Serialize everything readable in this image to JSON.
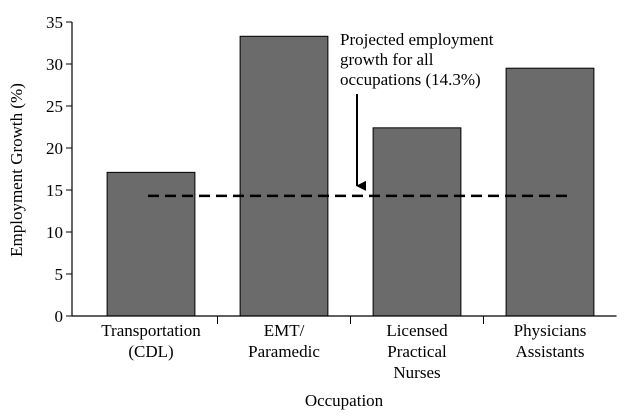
{
  "chart_data": {
    "type": "bar",
    "y_label": "Employment Growth (%)",
    "x_label": "Occupation",
    "categories": [
      [
        "Transportation",
        "(CDL)"
      ],
      [
        "EMT/",
        "Paramedic"
      ],
      [
        "Licensed",
        "Practical",
        "Nurses"
      ],
      [
        "Physicians",
        "Assistants"
      ]
    ],
    "values": [
      17.1,
      33.3,
      22.4,
      29.5
    ],
    "color": "#6b6b6b",
    "ylim": [
      0,
      35
    ],
    "yticks": [
      0,
      5,
      10,
      15,
      20,
      25,
      30,
      35
    ],
    "reference_line": {
      "value": 14.3,
      "label": [
        "Projected employment",
        "growth for all",
        "occupations (14.3%)"
      ]
    }
  }
}
